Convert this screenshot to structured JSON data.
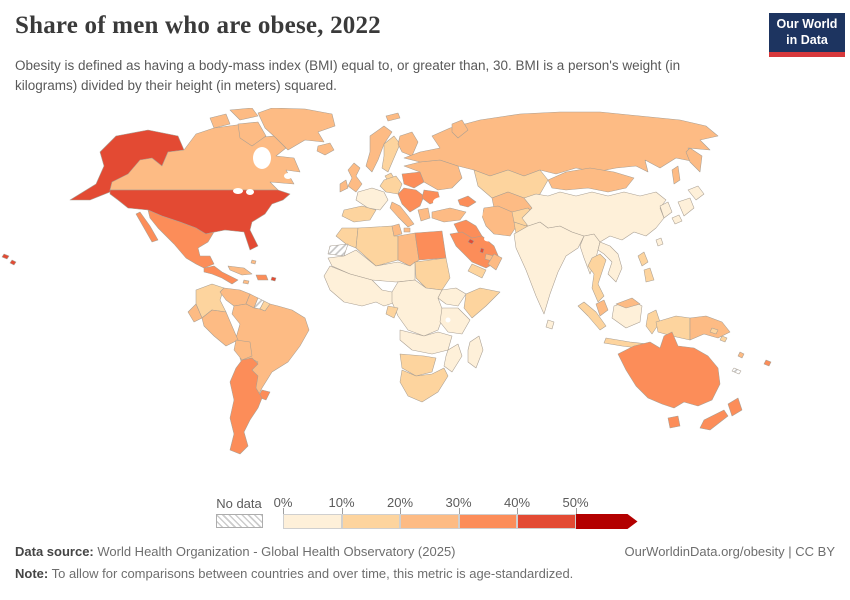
{
  "header": {
    "title": "Share of men who are obese, 2022",
    "subtitle": "Obesity is defined as having a body-mass index (BMI) equal to, or greater than, 30. BMI is a person's weight (in kilograms) divided by their height (in meters) squared.",
    "logo": {
      "line1": "Our World",
      "line2": "in Data",
      "bg_color": "#1d3460",
      "accent_color": "#d7383b"
    }
  },
  "legend": {
    "no_data_label": "No data",
    "ticks": [
      "0%",
      "10%",
      "20%",
      "30%",
      "40%",
      "50%"
    ],
    "bins": [
      {
        "label": "0-10%",
        "color": "#fef0d9"
      },
      {
        "label": "10-20%",
        "color": "#fdd49e"
      },
      {
        "label": "20-30%",
        "color": "#fdbb84"
      },
      {
        "label": "30-40%",
        "color": "#fc8d59"
      },
      {
        "label": "40-50%",
        "color": "#e34a33"
      },
      {
        "label": "50%+",
        "color": "#b30000",
        "arrow": true
      }
    ]
  },
  "footer": {
    "data_source_label": "Data source:",
    "data_source_value": " World Health Organization - Global Health Observatory (2025)",
    "note_label": "Note:",
    "note_value": " To allow for comparisons between countries and over time, this metric is age-standardized.",
    "attribution": "OurWorldinData.org/obesity | CC BY"
  },
  "chart_data": {
    "type": "choropleth-world-map",
    "title": "Share of men who are obese, 2022",
    "metric": "Share of men with body-mass index (BMI) >= 30 (%)",
    "year": 2022,
    "legend_bins": [
      "0-10%",
      "10-20%",
      "20-30%",
      "30-40%",
      "40-50%",
      "50%+",
      "no-data"
    ],
    "bin_colors": {
      "0-10%": "#fef0d9",
      "10-20%": "#fdd49e",
      "20-30%": "#fdbb84",
      "30-40%": "#fc8d59",
      "40-50%": "#e34a33",
      "50%+": "#b30000"
    },
    "regions": {
      "usa": "40-50%",
      "alaska": "40-50%",
      "hawaii": "40-50%",
      "canada": "20-30%",
      "greenland": "20-30%",
      "mexico": "30-40%",
      "central-america": "30-40%",
      "cuba": "20-30%",
      "hispaniola": "30-40%",
      "jamaica": "20-30%",
      "puerto-rico": "40-50%",
      "bahamas": "20-30%",
      "trinidad": "30-40%",
      "colombia": "10-20%",
      "venezuela": "20-30%",
      "guyana": "20-30%",
      "suriname": "no-data",
      "french-guiana": "10-20%",
      "ecuador": "20-30%",
      "peru": "20-30%",
      "brazil": "20-30%",
      "bolivia": "20-30%",
      "paraguay": "20-30%",
      "uruguay": "30-40%",
      "argentina-chile": "30-40%",
      "iceland": "20-30%",
      "uk": "20-30%",
      "ireland": "20-30%",
      "norway": "20-30%",
      "sweden": "10-20%",
      "finland": "20-30%",
      "denmark": "10-20%",
      "france": "0-10%",
      "iberia": "10-20%",
      "germany": "10-20%",
      "poland": "30-40%",
      "central-europe": "30-40%",
      "romania": "30-40%",
      "italy": "20-30%",
      "greece": "20-30%",
      "ukraine-region": "20-30%",
      "turkey": "20-30%",
      "russia": "20-30%",
      "svalbard": "20-30%",
      "kazakhstan": "10-20%",
      "central-asia": "20-30%",
      "caucasus": "30-40%",
      "syria-iraq": "30-40%",
      "iran": "20-30%",
      "afghanistan": "10-20%",
      "pakistan": "10-20%",
      "saudi-arabia": "30-40%",
      "kuwait": "40-50%",
      "qatar": "40-50%",
      "uae": "20-30%",
      "oman": "20-30%",
      "yemen": "10-20%",
      "egypt": "30-40%",
      "libya": "20-30%",
      "tunisia": "20-30%",
      "algeria": "10-20%",
      "morocco": "10-20%",
      "western-sahara": "no-data",
      "sahel": "0-10%",
      "sudan": "10-20%",
      "west-africa": "0-10%",
      "gabon": "10-20%",
      "central-africa": "0-10%",
      "ethiopia": "0-10%",
      "somalia": "10-20%",
      "east-africa": "0-10%",
      "angola-zambia": "0-10%",
      "mozambique": "0-10%",
      "namibia-botswana": "10-20%",
      "south-africa": "10-20%",
      "madagascar": "0-10%",
      "india": "0-10%",
      "sri-lanka": "0-10%",
      "bangladesh-myanmar": "0-10%",
      "china": "0-10%",
      "mongolia": "20-30%",
      "korea": "0-10%",
      "japan": "0-10%",
      "taiwan": "0-10%",
      "indochina": "0-10%",
      "thailand": "10-20%",
      "malaysia": "20-30%",
      "sumatra": "10-20%",
      "java": "10-20%",
      "kalimantan": "0-10%",
      "sulawesi": "10-20%",
      "philippines": "10-20%",
      "papua-indonesia": "10-20%",
      "papua-new-guinea": "20-30%",
      "solomon-islands": "10-20%",
      "vanuatu": "20-30%",
      "fiji": "30-40%",
      "new-caledonia": "no-data",
      "australia": "30-40%",
      "new-zealand": "30-40%"
    }
  }
}
